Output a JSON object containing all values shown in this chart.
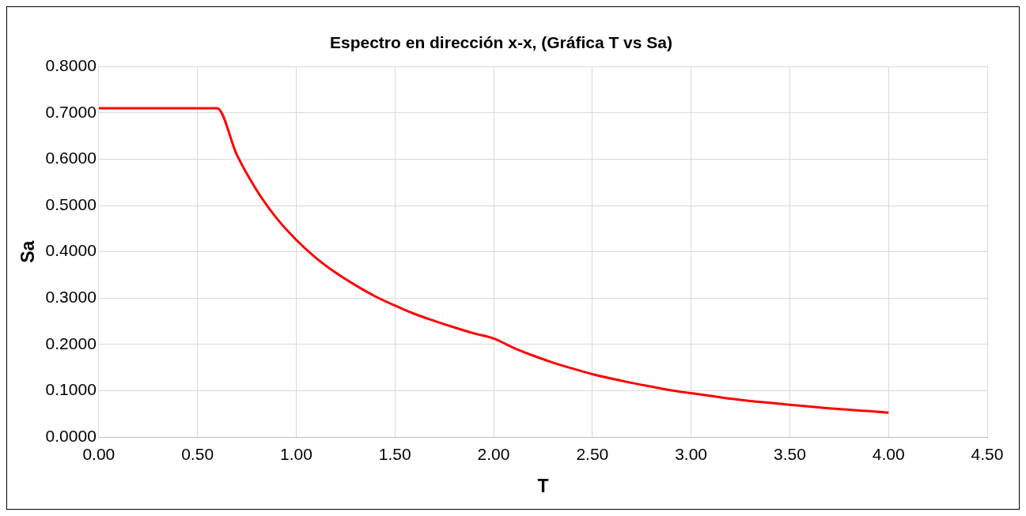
{
  "chart_data": {
    "type": "line",
    "title": "Espectro en dirección x-x, (Gráfica T vs Sa)",
    "xlabel": "T",
    "ylabel": "Sa",
    "x": [
      0,
      0.1,
      0.2,
      0.3,
      0.4,
      0.5,
      0.6,
      0.7,
      0.8,
      0.9,
      1.0,
      1.1,
      1.2,
      1.3,
      1.4,
      1.5,
      1.6,
      1.7,
      1.8,
      1.9,
      2.0,
      2.1,
      2.2,
      2.3,
      2.4,
      2.5,
      2.6,
      2.7,
      2.8,
      2.9,
      3.0,
      3.1,
      3.2,
      3.3,
      3.4,
      3.5,
      3.6,
      3.7,
      3.8,
      3.9,
      4.0
    ],
    "series": [
      {
        "color": "#ff0000",
        "values": [
          0.71,
          0.71,
          0.71,
          0.71,
          0.71,
          0.71,
          0.71,
          0.609,
          0.533,
          0.473,
          0.426,
          0.387,
          0.355,
          0.328,
          0.304,
          0.284,
          0.266,
          0.251,
          0.237,
          0.224,
          0.213,
          0.193,
          0.176,
          0.161,
          0.148,
          0.136,
          0.126,
          0.117,
          0.109,
          0.101,
          0.095,
          0.089,
          0.083,
          0.078,
          0.074,
          0.07,
          0.066,
          0.062,
          0.059,
          0.056,
          0.053
        ]
      }
    ],
    "xlim": [
      0,
      4.5
    ],
    "xticks": [
      {
        "value": 0,
        "label": "0.00"
      },
      {
        "value": 0.5,
        "label": "0.50"
      },
      {
        "value": 1,
        "label": "1.00"
      },
      {
        "value": 1.5,
        "label": "1.50"
      },
      {
        "value": 2,
        "label": "2.00"
      },
      {
        "value": 2.5,
        "label": "2.50"
      },
      {
        "value": 3,
        "label": "3.00"
      },
      {
        "value": 3.5,
        "label": "3.50"
      },
      {
        "value": 4,
        "label": "4.00"
      },
      {
        "value": 4.5,
        "label": "4.50"
      }
    ],
    "ylim": [
      0,
      0.8
    ],
    "yticks": [
      {
        "value": 0,
        "label": "0.0000"
      },
      {
        "value": 0.1,
        "label": "0.1000"
      },
      {
        "value": 0.2,
        "label": "0.2000"
      },
      {
        "value": 0.3,
        "label": "0.3000"
      },
      {
        "value": 0.4,
        "label": "0.4000"
      },
      {
        "value": 0.5,
        "label": "0.5000"
      },
      {
        "value": 0.6,
        "label": "0.6000"
      },
      {
        "value": 0.7,
        "label": "0.7000"
      },
      {
        "value": 0.8,
        "label": "0.8000"
      }
    ],
    "grid": true,
    "legend": false,
    "marker": "none",
    "line_style": "solid"
  }
}
